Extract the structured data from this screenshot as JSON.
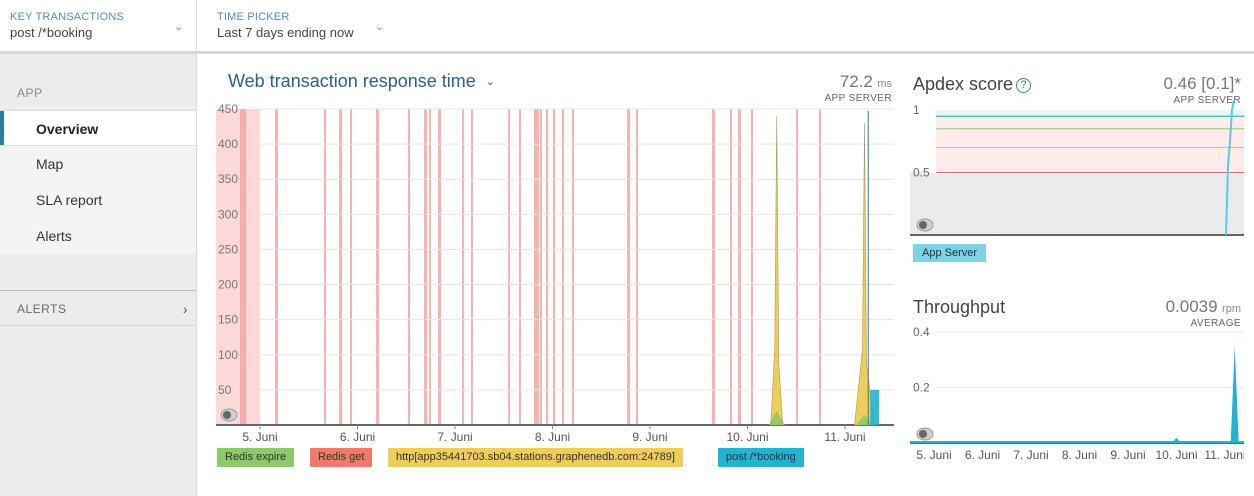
{
  "topbar": {
    "key_transactions": {
      "kicker": "KEY TRANSACTIONS",
      "value": "post /*booking"
    },
    "time_picker": {
      "kicker": "TIME PICKER",
      "value": "Last 7 days ending now"
    }
  },
  "sidebar": {
    "section_label": "APP",
    "items": [
      {
        "label": "Overview",
        "active": true
      },
      {
        "label": "Map",
        "active": false
      },
      {
        "label": "SLA report",
        "active": false
      },
      {
        "label": "Alerts",
        "active": false
      }
    ],
    "alerts_section": "ALERTS"
  },
  "main_chart": {
    "title": "Web transaction response time",
    "value": "72.2",
    "unit": "ms",
    "caption": "APP SERVER",
    "legend": [
      {
        "label": "Redis expire",
        "color": "#8dc86a"
      },
      {
        "label": "Redis get",
        "color": "#ef7a6a"
      },
      {
        "label": "http[app35441703.sb04.stations.graphenedb.com:24789]",
        "color": "#efcd5b"
      },
      {
        "label": "post /*booking",
        "color": "#22b3d2"
      }
    ]
  },
  "apdex": {
    "title": "Apdex score",
    "value": "0.46 [0.1]*",
    "caption": "APP SERVER",
    "tag": "App Server"
  },
  "throughput": {
    "title": "Throughput",
    "value": "0.0039",
    "unit": "rpm",
    "caption": "AVERAGE"
  },
  "chart_data": [
    {
      "type": "area",
      "title": "Web transaction response time",
      "ylim": [
        0,
        450
      ],
      "yticks": [
        50,
        100,
        150,
        200,
        250,
        300,
        350,
        400,
        450
      ],
      "categories": [
        "5. Juni",
        "6. Juni",
        "7. Juni",
        "8. Juni",
        "9. Juni",
        "10. Juni",
        "11. Juni"
      ],
      "series": [
        {
          "name": "Redis expire",
          "peaks": [
            {
              "day": 10.3,
              "value": 20
            },
            {
              "day": 11.2,
              "value": 15
            }
          ]
        },
        {
          "name": "Redis get",
          "note_bands": "alerts"
        },
        {
          "name": "http[app35441703.sb04.stations.graphenedb.com:24789]",
          "peaks": [
            {
              "day": 10.3,
              "value": 440
            },
            {
              "day": 11.2,
              "value": 430
            }
          ]
        },
        {
          "name": "post /*booking",
          "peaks": [
            {
              "day": 11.3,
              "value": 50
            }
          ]
        }
      ],
      "grid": true
    },
    {
      "type": "line",
      "title": "Apdex score",
      "ylim": [
        0,
        1
      ],
      "yticks": [
        0.5,
        1
      ],
      "series": [
        {
          "name": "App Server",
          "final_value": 1
        }
      ]
    },
    {
      "type": "line",
      "title": "Throughput",
      "ylim": [
        0,
        0.4
      ],
      "yticks": [
        0.2,
        0.4
      ],
      "categories": [
        "5. Juni",
        "6. Juni",
        "7. Juni",
        "8. Juni",
        "9. Juni",
        "10. Juni",
        "11. Juni"
      ],
      "series": [
        {
          "name": "Throughput",
          "peaks": [
            {
              "day": 10.0,
              "value": 0.02
            },
            {
              "day": 11.2,
              "value": 0.35
            }
          ]
        }
      ]
    }
  ]
}
